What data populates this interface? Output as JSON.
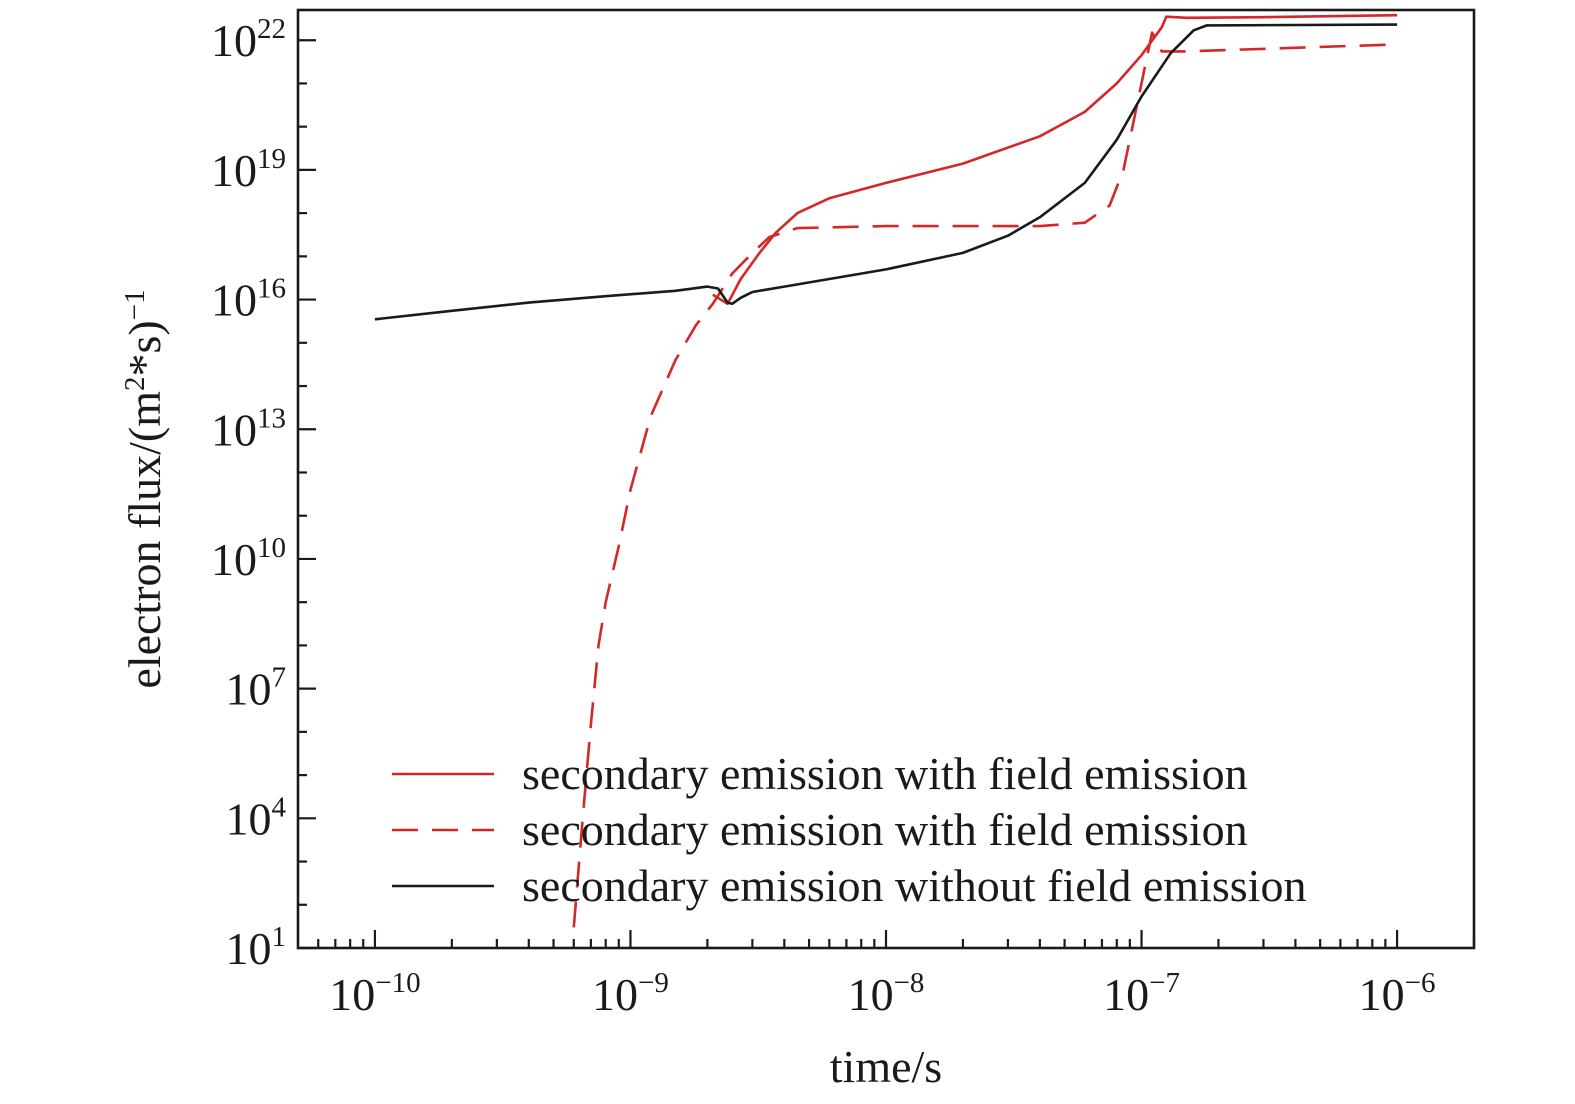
{
  "chart_data": {
    "type": "line",
    "xlabel": "time/s",
    "ylabel": "electron flux/(m",
    "ylabel_sup1": "2",
    "ylabel_mid": "*s)",
    "ylabel_sup2": "−1",
    "xscale": "log",
    "yscale": "log",
    "xlim": [
      5e-11,
      2e-06
    ],
    "ylim": [
      10,
      5e+22
    ],
    "xticks": [
      {
        "value": 1e-10,
        "base": "10",
        "exp": "−10"
      },
      {
        "value": 1e-09,
        "base": "10",
        "exp": "−9"
      },
      {
        "value": 1e-08,
        "base": "10",
        "exp": "−8"
      },
      {
        "value": 1e-07,
        "base": "10",
        "exp": "−7"
      },
      {
        "value": 1e-06,
        "base": "10",
        "exp": "−6"
      }
    ],
    "yticks": [
      {
        "value": 10.0,
        "base": "10",
        "exp": "1"
      },
      {
        "value": 10000.0,
        "base": "10",
        "exp": "4"
      },
      {
        "value": 10000000.0,
        "base": "10",
        "exp": "7"
      },
      {
        "value": 10000000000.0,
        "base": "10",
        "exp": "10"
      },
      {
        "value": 10000000000000.0,
        "base": "10",
        "exp": "13"
      },
      {
        "value": 1e+16,
        "base": "10",
        "exp": "16"
      },
      {
        "value": 1e+19,
        "base": "10",
        "exp": "19"
      },
      {
        "value": 1e+22,
        "base": "10",
        "exp": "22"
      }
    ],
    "grid": false,
    "legend_position": "bottom-right",
    "series": [
      {
        "name": "secondary emission with field emission",
        "color": "#d62728",
        "dash": "solid",
        "points": [
          [
            2.1e-09,
            1.3e+16
          ],
          [
            2.4e-09,
            8000000000000000.0
          ],
          [
            2.7e-09,
            3e+16
          ],
          [
            3.2e-09,
            1.2e+17
          ],
          [
            3.7e-09,
            3.5e+17
          ],
          [
            4.5e-09,
            1e+18
          ],
          [
            6e-09,
            2.2e+18
          ],
          [
            1e-08,
            5e+18
          ],
          [
            2e-08,
            1.4e+19
          ],
          [
            4e-08,
            6e+19
          ],
          [
            6e-08,
            2.2e+20
          ],
          [
            8e-08,
            1e+21
          ],
          [
            1e-07,
            4.5e+21
          ],
          [
            1.2e-07,
            2e+22
          ],
          [
            1.25e-07,
            3.5e+22
          ],
          [
            1.5e-07,
            3.3e+22
          ],
          [
            3e-07,
            3.4e+22
          ],
          [
            1e-06,
            3.8e+22
          ]
        ]
      },
      {
        "name": "secondary emission with field emission",
        "color": "#d62728",
        "dash": "dashed",
        "points": [
          [
            6e-10,
            30.0
          ],
          [
            6.5e-10,
            10000.0
          ],
          [
            7e-10,
            1500000.0
          ],
          [
            7.5e-10,
            100000000.0
          ],
          [
            8e-10,
            1000000000.0
          ],
          [
            9e-10,
            20000000000.0
          ],
          [
            1e-09,
            400000000000.0
          ],
          [
            1.2e-09,
            20000000000000.0
          ],
          [
            1.5e-09,
            400000000000000.0
          ],
          [
            1.8e-09,
            2500000000000000.0
          ],
          [
            2.1e-09,
            8000000000000000.0
          ],
          [
            2.5e-09,
            4e+16
          ],
          [
            3e-09,
            1.2e+17
          ],
          [
            3.5e-09,
            2.8e+17
          ],
          [
            4.5e-09,
            4.5e+17
          ],
          [
            1e-08,
            5e+17
          ],
          [
            2e-08,
            5e+17
          ],
          [
            4e-08,
            5e+17
          ],
          [
            6e-08,
            6e+17
          ],
          [
            7.5e-08,
            1.5e+18
          ],
          [
            8.5e-08,
            1e+19
          ],
          [
            1e-07,
            1e+21
          ],
          [
            1.1e-07,
            1.5e+22
          ],
          [
            1.2e-07,
            5.5e+21
          ],
          [
            1.5e-07,
            5.5e+21
          ],
          [
            1e-06,
            8e+21
          ]
        ]
      },
      {
        "name": "secondary emission without field emission",
        "color": "#1a1a1a",
        "dash": "solid",
        "points": [
          [
            1e-10,
            3500000000000000.0
          ],
          [
            2e-10,
            5500000000000000.0
          ],
          [
            4e-10,
            8500000000000000.0
          ],
          [
            8e-10,
            1.2e+16
          ],
          [
            1.5e-09,
            1.6e+16
          ],
          [
            2e-09,
            2e+16
          ],
          [
            2.2e-09,
            1.8e+16
          ],
          [
            2.4e-09,
            8500000000000000.0
          ],
          [
            2.5e-09,
            8000000000000000.0
          ],
          [
            2.7e-09,
            1.1e+16
          ],
          [
            3e-09,
            1.5e+16
          ],
          [
            4e-09,
            2e+16
          ],
          [
            6e-09,
            3e+16
          ],
          [
            1e-08,
            5e+16
          ],
          [
            2e-08,
            1.2e+17
          ],
          [
            3e-08,
            3e+17
          ],
          [
            4e-08,
            8e+17
          ],
          [
            6e-08,
            5e+18
          ],
          [
            8e-08,
            5e+19
          ],
          [
            1e-07,
            5e+20
          ],
          [
            1.3e-07,
            5e+21
          ],
          [
            1.6e-07,
            1.7e+22
          ],
          [
            1.8e-07,
            2.2e+22
          ],
          [
            1e-06,
            2.3e+22
          ]
        ]
      }
    ]
  }
}
